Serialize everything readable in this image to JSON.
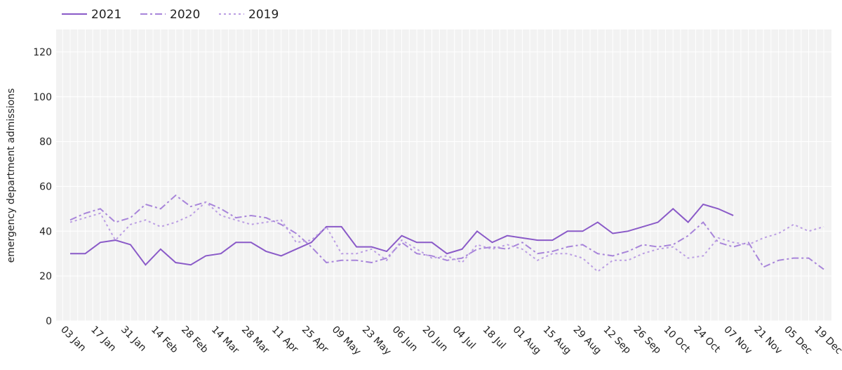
{
  "chart_data": {
    "type": "line",
    "y_label": "emergency department admissions",
    "categories": [
      "03 Jan",
      null,
      "17 Jan",
      null,
      "31 Jan",
      null,
      "14 Feb",
      null,
      "28 Feb",
      null,
      "14 Mar",
      null,
      "28 Mar",
      null,
      "11 Apr",
      null,
      "25 Apr",
      null,
      "09 May",
      null,
      "23 May",
      null,
      "06 Jun",
      null,
      "20 Jun",
      null,
      "04 Jul",
      null,
      "18 Jul",
      null,
      "01 Aug",
      null,
      "15 Aug",
      null,
      "29 Aug",
      null,
      "12 Sep",
      null,
      "26 Sep",
      null,
      "10 Oct",
      null,
      "24 Oct",
      null,
      "07 Nov",
      null,
      "21 Nov",
      null,
      "05 Dec",
      null,
      "19 Dec"
    ],
    "series": [
      {
        "name": "2021",
        "color": "#8a5ac8",
        "style": "solid",
        "values": [
          30,
          30,
          35,
          36,
          34,
          25,
          32,
          26,
          25,
          29,
          30,
          35,
          35,
          31,
          29,
          32,
          35,
          42,
          42,
          33,
          33,
          31,
          38,
          35,
          35,
          30,
          32,
          40,
          35,
          38,
          37,
          36,
          36,
          40,
          40,
          44,
          39,
          40,
          42,
          44,
          50,
          44,
          52,
          50,
          47,
          null,
          null,
          null,
          null,
          null,
          null
        ]
      },
      {
        "name": "2020",
        "color": "#a885da",
        "style": "dashdot",
        "values": [
          45,
          48,
          50,
          44,
          46,
          52,
          50,
          56,
          51,
          53,
          50,
          46,
          47,
          46,
          43,
          39,
          33,
          26,
          27,
          27,
          26,
          28,
          35,
          30,
          29,
          27,
          28,
          32,
          33,
          32,
          35,
          30,
          31,
          33,
          34,
          30,
          29,
          31,
          34,
          33,
          34,
          38,
          44,
          35,
          33,
          35,
          24,
          27,
          28,
          28,
          23
        ]
      },
      {
        "name": "2019",
        "color": "#bb9ee3",
        "style": "dot",
        "values": [
          44,
          46,
          48,
          36,
          43,
          45,
          42,
          44,
          47,
          53,
          47,
          45,
          43,
          44,
          45,
          35,
          36,
          42,
          30,
          30,
          32,
          27,
          36,
          32,
          28,
          29,
          26,
          34,
          32,
          34,
          32,
          27,
          30,
          30,
          28,
          22,
          27,
          27,
          30,
          32,
          33,
          28,
          29,
          37,
          35,
          34,
          37,
          39,
          43,
          40,
          42
        ]
      }
    ],
    "ylim": [
      0,
      130
    ],
    "yticks": [
      0,
      20,
      40,
      60,
      80,
      100,
      120
    ],
    "grid": true,
    "legend": "top-left"
  }
}
